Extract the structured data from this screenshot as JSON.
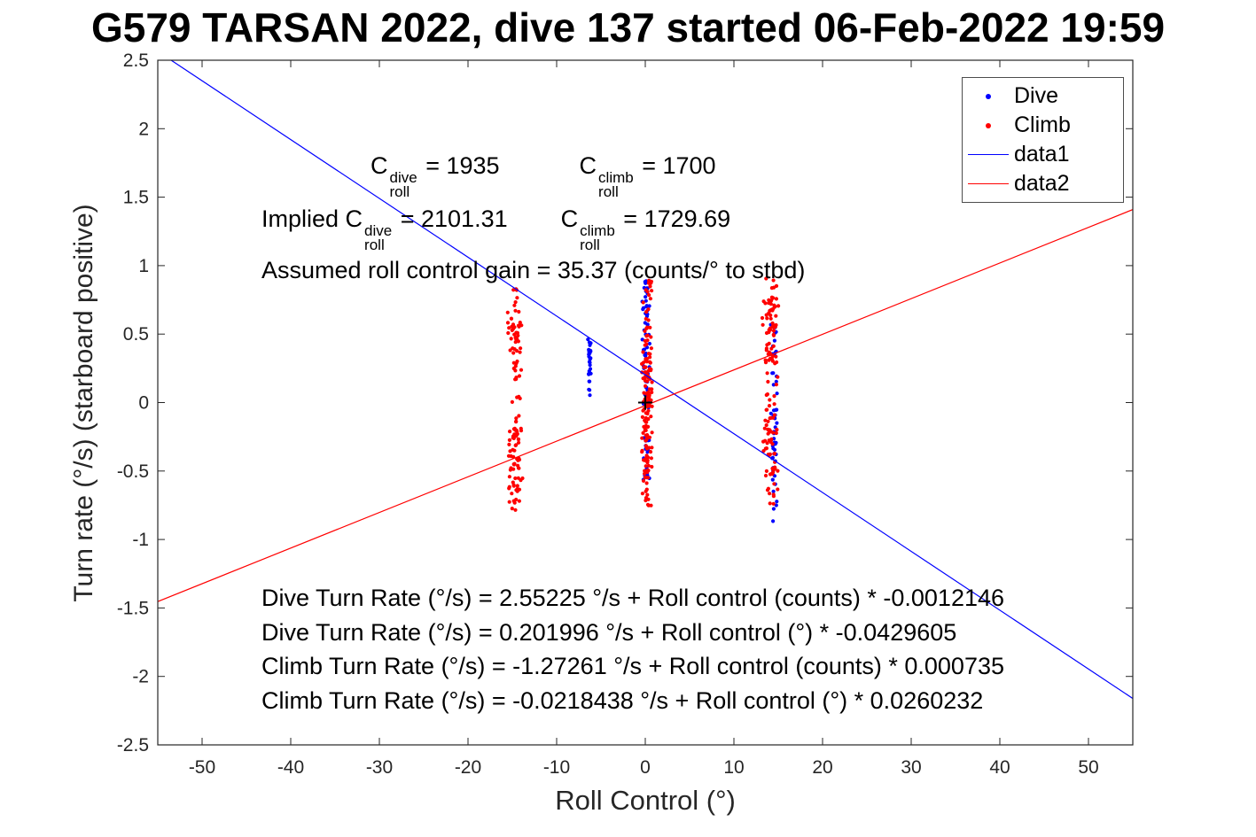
{
  "title": "G579 TARSAN 2022, dive 137 started 06-Feb-2022 19:59",
  "chart_data": {
    "type": "scatter",
    "title": "G579 TARSAN 2022, dive 137 started 06-Feb-2022 19:59",
    "xlabel": "Roll Control (°)",
    "ylabel": "Turn rate (°/s) (starboard positive)",
    "xlim": [
      -55,
      55
    ],
    "ylim": [
      -2.5,
      2.5
    ],
    "xticks": [
      -50,
      -40,
      -30,
      -20,
      -10,
      0,
      10,
      20,
      30,
      40,
      50
    ],
    "yticks": [
      -2.5,
      -2,
      -1.5,
      -1,
      -0.5,
      0,
      0.5,
      1,
      1.5,
      2,
      2.5
    ],
    "grid": false,
    "axis_color": "#262626",
    "legend": {
      "position": "top-right",
      "entries": [
        {
          "label": "Dive",
          "type": "marker",
          "color": "#0000FF"
        },
        {
          "label": "Climb",
          "type": "marker",
          "color": "#FF0000"
        },
        {
          "label": "data1",
          "type": "line",
          "color": "#0000FF"
        },
        {
          "label": "data2",
          "type": "line",
          "color": "#FF0000"
        }
      ]
    },
    "series": [
      {
        "name": "Dive",
        "color": "#0000FF",
        "marker": "dot"
      },
      {
        "name": "Climb",
        "color": "#FF0000",
        "marker": "dot"
      }
    ],
    "fit_lines": [
      {
        "name": "data1",
        "color": "#0000FF",
        "intercept": 0.201996,
        "slope": -0.0429605
      },
      {
        "name": "data2",
        "color": "#FF0000",
        "intercept": -0.0218438,
        "slope": 0.0260232
      }
    ],
    "reference_marker": {
      "shape": "plus",
      "x": 0,
      "y": 0,
      "color": "#000000"
    },
    "scatter_clusters": [
      {
        "series": "dive",
        "x_center": -6.3,
        "x_spread": 0.2,
        "bands": [
          {
            "y_min": 0.05,
            "y_max": 0.48,
            "n": 30
          }
        ]
      },
      {
        "series": "dive",
        "x_center": 0.1,
        "x_spread": 0.5,
        "bands": [
          {
            "y_min": 0.25,
            "y_max": 0.92,
            "n": 40
          },
          {
            "y_min": -0.05,
            "y_max": 0.25,
            "n": 15
          },
          {
            "y_min": -0.62,
            "y_max": -0.25,
            "n": 22
          }
        ]
      },
      {
        "series": "dive",
        "x_center": 14.5,
        "x_spread": 0.4,
        "bands": [
          {
            "y_min": -0.6,
            "y_max": -0.05,
            "n": 32
          },
          {
            "y_min": 0.3,
            "y_max": 0.62,
            "n": 10
          },
          {
            "y_min": -0.88,
            "y_max": -0.62,
            "n": 5
          },
          {
            "y_min": 0.02,
            "y_max": 0.28,
            "n": 6
          }
        ]
      },
      {
        "series": "climb",
        "x_center": -14.7,
        "x_spread": 0.9,
        "bands": [
          {
            "y_min": 0.15,
            "y_max": 0.68,
            "n": 45
          },
          {
            "y_min": 0.7,
            "y_max": 0.87,
            "n": 6
          },
          {
            "y_min": -0.15,
            "y_max": 0.12,
            "n": 8
          },
          {
            "y_min": -0.68,
            "y_max": -0.18,
            "n": 58
          },
          {
            "y_min": -0.82,
            "y_max": -0.68,
            "n": 7
          }
        ]
      },
      {
        "series": "climb",
        "x_center": 0.2,
        "x_spread": 0.7,
        "bands": [
          {
            "y_min": 0.4,
            "y_max": 0.9,
            "n": 28
          },
          {
            "y_min": -0.05,
            "y_max": 0.4,
            "n": 62
          },
          {
            "y_min": -0.62,
            "y_max": -0.05,
            "n": 58
          },
          {
            "y_min": -0.78,
            "y_max": -0.62,
            "n": 10
          }
        ]
      },
      {
        "series": "climb",
        "x_center": 14.1,
        "x_spread": 1.0,
        "bands": [
          {
            "y_min": 0.28,
            "y_max": 0.78,
            "n": 62
          },
          {
            "y_min": 0.8,
            "y_max": 0.93,
            "n": 5
          },
          {
            "y_min": -0.12,
            "y_max": 0.26,
            "n": 16
          },
          {
            "y_min": -0.55,
            "y_max": -0.12,
            "n": 42
          },
          {
            "y_min": -0.82,
            "y_max": -0.55,
            "n": 9
          }
        ]
      }
    ]
  },
  "annotations": {
    "c_given": {
      "segments": [
        {
          "text": "C"
        },
        {
          "sup": "dive",
          "sub": "roll"
        },
        {
          "text": " = 1935            "
        },
        {
          "text": "C"
        },
        {
          "sup": "climb",
          "sub": "roll"
        },
        {
          "text": " = 1700"
        }
      ]
    },
    "c_implied": {
      "segments": [
        {
          "text": "Implied C"
        },
        {
          "sup": "dive",
          "sub": "roll"
        },
        {
          "text": " = 2101.31        "
        },
        {
          "text": "C"
        },
        {
          "sup": "climb",
          "sub": "roll"
        },
        {
          "text": " = 1729.69"
        }
      ]
    },
    "gain": {
      "segments": [
        {
          "text": "Assumed roll control gain = 35.37 (counts/° to stbd)"
        }
      ]
    },
    "equations": [
      "Dive Turn Rate (°/s) = 2.55225 °/s + Roll control (counts) * -0.0012146",
      "Dive Turn Rate (°/s) = 0.201996 °/s + Roll control (°) * -0.0429605",
      "Climb Turn Rate (°/s) = -1.27261 °/s + Roll control (counts) * 0.000735",
      "Climb Turn Rate (°/s) = -0.0218438 °/s + Roll control (°) * 0.0260232"
    ]
  }
}
